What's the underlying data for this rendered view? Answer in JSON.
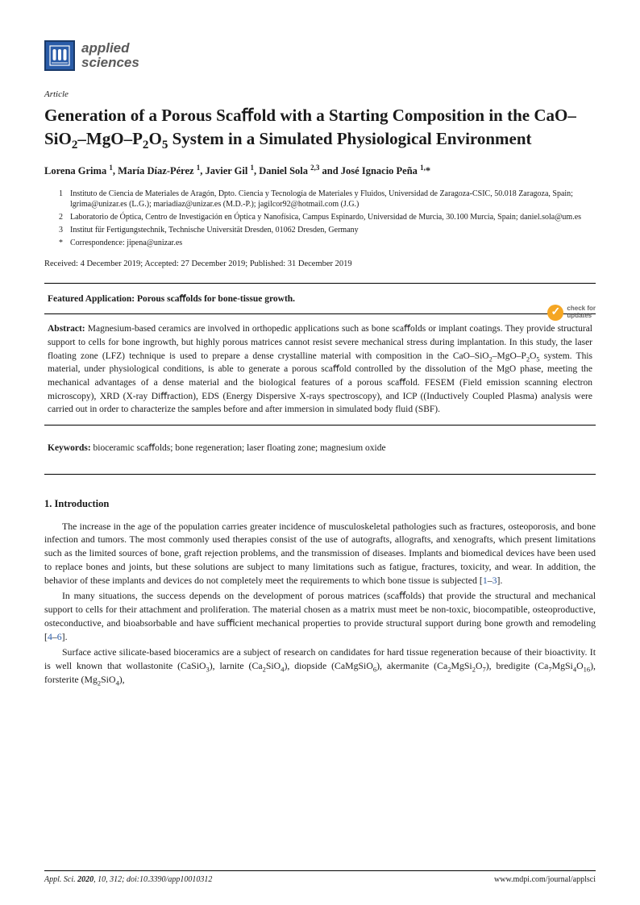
{
  "journal": {
    "logo_text_line1": "applied",
    "logo_text_line2": "sciences"
  },
  "article_type": "Article",
  "title_html": "Generation of a Porous Scaﬀold with a Starting Composition in the CaO–SiO<sub>2</sub>–MgO–P<sub>2</sub>O<sub>5</sub> System in a Simulated Physiological Environment",
  "authors_html": "Lorena Grima <sup>1</sup>, María Díaz-Pérez <sup>1</sup>, Javier Gil <sup>1</sup>, Daniel Sola <sup>2,3</sup> and José Ignacio Peña <sup>1,</sup>*",
  "affiliations": [
    {
      "num": "1",
      "text": "Instituto de Ciencia de Materiales de Aragón, Dpto. Ciencia y Tecnología de Materiales y Fluidos, Universidad de Zaragoza-CSIC, 50.018 Zaragoza, Spain; lgrima@unizar.es (L.G.); mariadiaz@unizar.es (M.D.-P.); jagilcor92@hotmail.com (J.G.)"
    },
    {
      "num": "2",
      "text": "Laboratorio de Óptica, Centro de Investigación en Óptica y Nanofísica, Campus Espinardo, Universidad de Murcia, 30.100 Murcia, Spain; daniel.sola@um.es"
    },
    {
      "num": "3",
      "text": "Institut für Fertigungstechnik, Technische Universität Dresden, 01062 Dresden, Germany"
    },
    {
      "num": "*",
      "text": "Correspondence: jipena@unizar.es"
    }
  ],
  "received": "Received: 4 December 2019; Accepted: 27 December 2019; Published: 31 December 2019",
  "check_updates": {
    "line1": "check for",
    "line2": "updates"
  },
  "featured": "Featured Application: Porous scaﬀolds for bone-tissue growth.",
  "abstract_label": "Abstract:",
  "abstract_html": "Magnesium-based ceramics are involved in orthopedic applications such as bone scaﬀolds or implant coatings. They provide structural support to cells for bone ingrowth, but highly porous matrices cannot resist severe mechanical stress during implantation. In this study, the laser floating zone (LFZ) technique is used to prepare a dense crystalline material with composition in the CaO–SiO<sub>2</sub>–MgO–P<sub>2</sub>O<sub>5</sub> system. This material, under physiological conditions, is able to generate a porous scaﬀold controlled by the dissolution of the MgO phase, meeting the mechanical advantages of a dense material and the biological features of a porous scaﬀold. FESEM (Field emission scanning electron microscopy), XRD (X-ray Diﬀraction), EDS (Energy Dispersive X-rays spectroscopy), and ICP ((Inductively Coupled Plasma) analysis were carried out in order to characterize the samples before and after immersion in simulated body fluid (SBF).",
  "keywords_label": "Keywords:",
  "keywords_text": "bioceramic scaﬀolds; bone regeneration; laser floating zone; magnesium oxide",
  "section1_heading": "1. Introduction",
  "para1_html": "The increase in the age of the population carries greater incidence of musculoskeletal pathologies such as fractures, osteoporosis, and bone infection and tumors. The most commonly used therapies consist of the use of autografts, allografts, and xenografts, which present limitations such as the limited sources of bone, graft rejection problems, and the transmission of diseases. Implants and biomedical devices have been used to replace bones and joints, but these solutions are subject to many limitations such as fatigue, fractures, toxicity, and wear. In addition, the behavior of these implants and devices do not completely meet the requirements to which bone tissue is subjected [<span class=\"ref-link\">1</span>–<span class=\"ref-link\">3</span>].",
  "para2_html": "In many situations, the success depends on the development of porous matrices (scaﬀolds) that provide the structural and mechanical support to cells for their attachment and proliferation. The material chosen as a matrix must meet be non-toxic, biocompatible, osteoproductive, osteconductive, and bioabsorbable and have suﬃcient mechanical properties to provide structural support during bone growth and remodeling [<span class=\"ref-link\">4</span>–<span class=\"ref-link\">6</span>].",
  "para3_html": "Surface active silicate-based bioceramics are a subject of research on candidates for hard tissue regeneration because of their bioactivity. It is well known that wollastonite (CaSiO<sub>3</sub>), larnite (Ca<sub>2</sub>SiO<sub>4</sub>), diopside (CaMgSiO<sub>6</sub>), akermanite (Ca<sub>2</sub>MgSi<sub>2</sub>O<sub>7</sub>), bredigite (Ca<sub>7</sub>MgSi<sub>4</sub>O<sub>16</sub>), forsterite (Mg<sub>2</sub>SiO<sub>4</sub>),",
  "footer": {
    "left_html": "<i>Appl. Sci.</i> <b>2020</b>, <i>10</i>, 312; doi:10.3390/app10010312",
    "right": "www.mdpi.com/journal/applsci"
  }
}
